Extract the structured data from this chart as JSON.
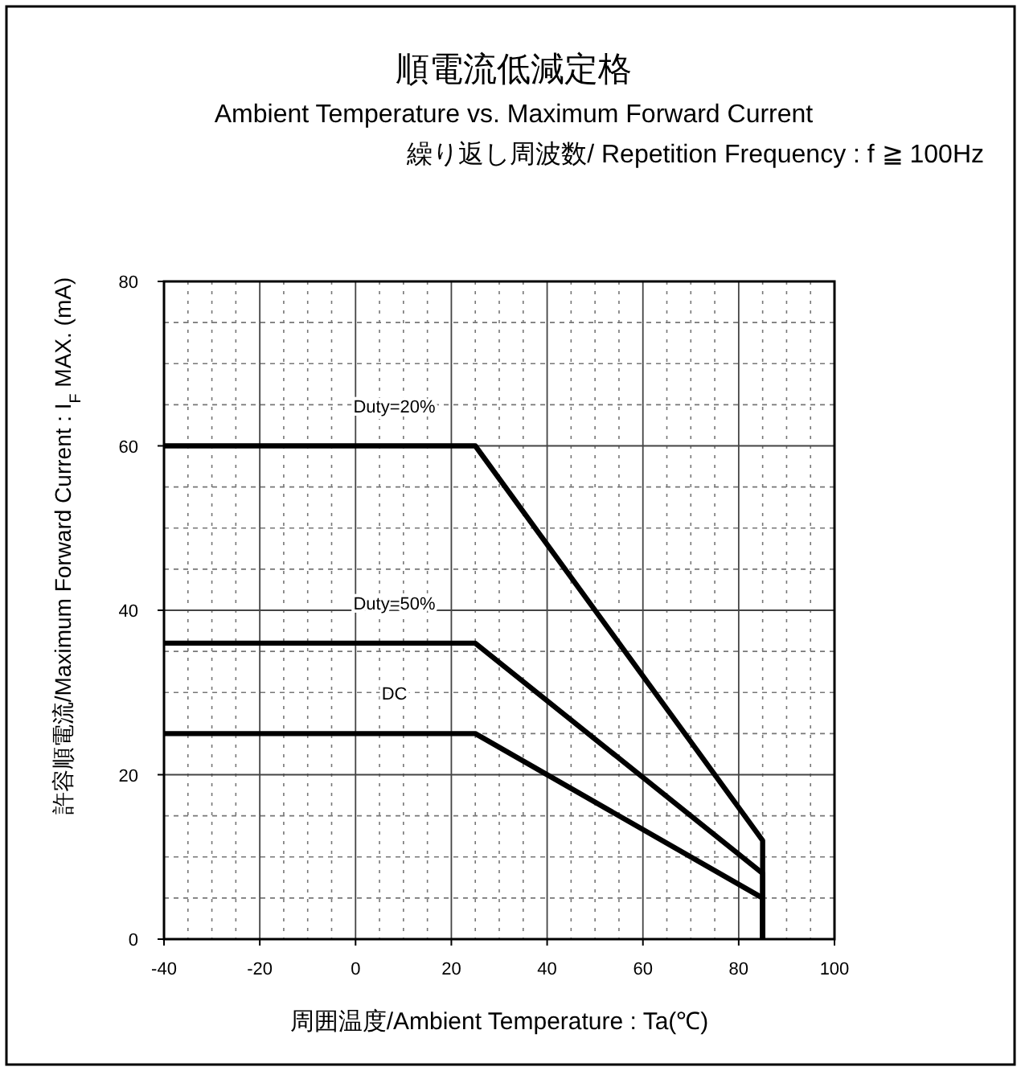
{
  "chart_data": {
    "type": "line",
    "title": "順電流低減定格",
    "subtitle": "Ambient Temperature vs. Maximum Forward Current",
    "annotations": [
      "繰り返し周波数/ Repetition Frequency : f ≧ 100Hz"
    ],
    "xlabel": "周囲温度/Ambient Temperature : Ta(℃)",
    "ylabel": "許容順電流/Maximum Forward Current : I$_{F}$ MAX. (mA)",
    "series": [
      {
        "name": "Duty=20%",
        "color": "#000000",
        "x": [
          -40,
          25,
          85,
          85
        ],
        "values": [
          60,
          60,
          12,
          0
        ]
      },
      {
        "name": "Duty=50%",
        "color": "#000000",
        "x": [
          -40,
          25,
          85,
          85
        ],
        "values": [
          36,
          36,
          8,
          0
        ]
      },
      {
        "name": "DC",
        "color": "#000000",
        "x": [
          -40,
          25,
          85,
          85
        ],
        "values": [
          25,
          25,
          5,
          0
        ]
      }
    ],
    "xlim": [
      -40,
      100
    ],
    "xticks": [
      -40,
      -20,
      0,
      20,
      40,
      60,
      80,
      100
    ],
    "ylim": [
      0,
      80
    ],
    "yticks": [
      0,
      20,
      40,
      60,
      80
    ],
    "grid": true,
    "legend": false,
    "marker": "none",
    "line_style": "solid"
  }
}
